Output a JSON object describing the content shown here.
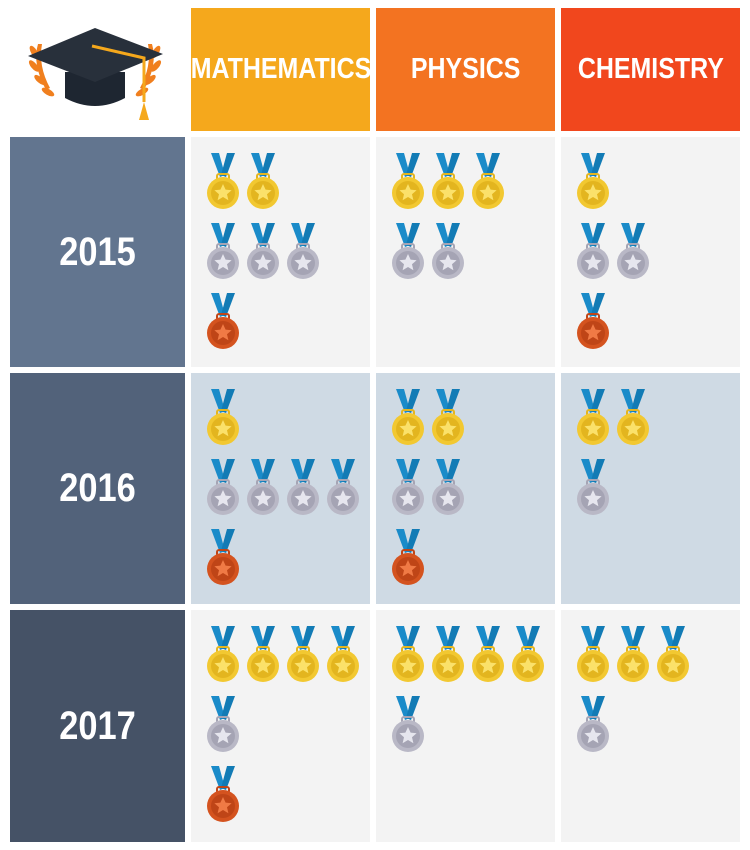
{
  "chart_data": {
    "type": "table",
    "columns": [
      {
        "label": "MATHEMATICS",
        "color": "#F5A81C"
      },
      {
        "label": "PHYSICS",
        "color": "#F37321"
      },
      {
        "label": "CHEMISTRY",
        "color": "#F1471D"
      }
    ],
    "rows": [
      {
        "label": "2015",
        "color": "#62758F",
        "cell_bg": "#F3F3F3",
        "values": [
          {
            "gold": 2,
            "silver": 3,
            "bronze": 1
          },
          {
            "gold": 3,
            "silver": 2,
            "bronze": 0
          },
          {
            "gold": 1,
            "silver": 2,
            "bronze": 1
          }
        ]
      },
      {
        "label": "2016",
        "color": "#52627A",
        "cell_bg": "#CFDAE4",
        "values": [
          {
            "gold": 1,
            "silver": 4,
            "bronze": 1
          },
          {
            "gold": 2,
            "silver": 2,
            "bronze": 1
          },
          {
            "gold": 2,
            "silver": 1,
            "bronze": 0
          }
        ]
      },
      {
        "label": "2017",
        "color": "#455266",
        "cell_bg": "#F3F3F3",
        "values": [
          {
            "gold": 4,
            "silver": 1,
            "bronze": 1
          },
          {
            "gold": 4,
            "silver": 1,
            "bronze": 0
          },
          {
            "gold": 3,
            "silver": 1,
            "bronze": 0
          }
        ]
      }
    ],
    "medal_colors": {
      "gold": "#F2C831",
      "silver": "#B9B8C6",
      "bronze": "#D4531F",
      "ribbon": "#1A8BC9"
    },
    "icons": {
      "logo": "graduation-cap-icon",
      "medal": "medal-icon"
    }
  }
}
